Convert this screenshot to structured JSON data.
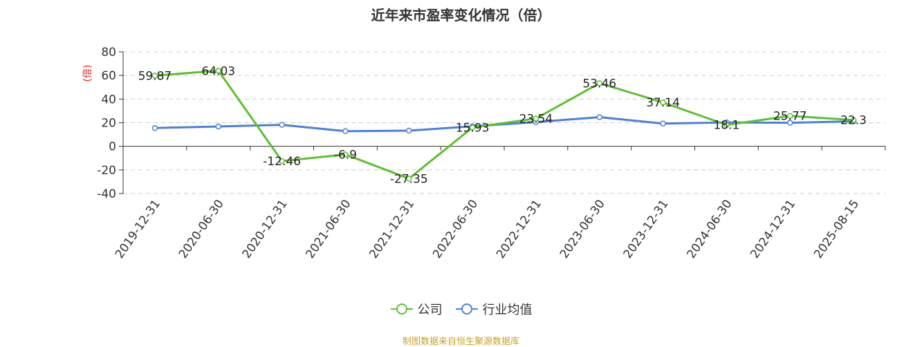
{
  "chart_data": {
    "type": "line",
    "title": "近年来市盈率变化情况（倍）",
    "ylabel": "(倍)",
    "xlabel": "",
    "ylim": [
      -40,
      80
    ],
    "yticks": [
      -40,
      -20,
      0,
      20,
      40,
      60,
      80
    ],
    "grid": true,
    "legend_position": "bottom",
    "categories": [
      "2019-12-31",
      "2020-06-30",
      "2020-12-31",
      "2021-06-30",
      "2021-12-31",
      "2022-06-30",
      "2022-12-31",
      "2023-06-30",
      "2023-12-31",
      "2024-06-30",
      "2024-12-31",
      "2025-08-15"
    ],
    "series": [
      {
        "name": "公司",
        "color": "#5cc12c",
        "values": [
          59.87,
          64.03,
          -12.46,
          -6.9,
          -27.35,
          15.93,
          23.54,
          53.46,
          37.14,
          18.1,
          25.77,
          22.3
        ],
        "labels": [
          "59.87",
          "64.03",
          "-12.46",
          "-6.9",
          "-27.35",
          "15.93",
          "23.54",
          "53.46",
          "37.14",
          "18.1",
          "25.77",
          "22.3"
        ]
      },
      {
        "name": "行业均值",
        "color": "#4a7fd9",
        "values": [
          15.5,
          16.8,
          18.2,
          12.8,
          13.3,
          16.9,
          20.5,
          24.7,
          19.3,
          20.2,
          19.9,
          21.2
        ]
      }
    ]
  },
  "source_text": "制图数据来自恒生聚源数据库"
}
